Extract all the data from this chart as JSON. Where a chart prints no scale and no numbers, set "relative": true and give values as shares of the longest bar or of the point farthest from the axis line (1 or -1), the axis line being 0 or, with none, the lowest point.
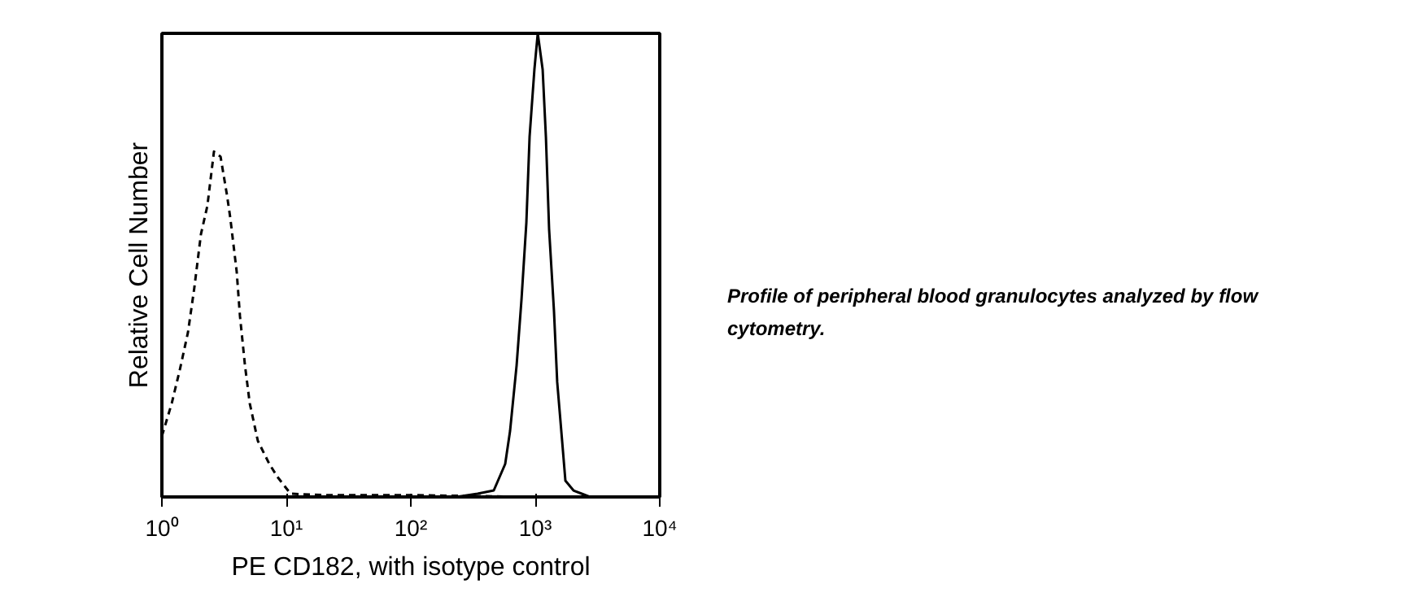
{
  "chart_data": {
    "type": "line",
    "relative": true,
    "xlabel": "PE CD182, with isotype control",
    "ylabel": "Relative Cell Number",
    "log": "x",
    "xlim": [
      1,
      10000
    ],
    "xticks": [
      {
        "value": 1,
        "label": "10⁰"
      },
      {
        "value": 10,
        "label": "10¹"
      },
      {
        "value": 100,
        "label": "10²"
      },
      {
        "value": 1000,
        "label": "10³"
      },
      {
        "value": 10000,
        "label": "10⁴"
      }
    ],
    "grid": false,
    "annotations": [
      "Profile of peripheral blood granulocytes analyzed by flow cytometry."
    ],
    "series": [
      {
        "color": "#000000",
        "line_style": "dashed",
        "x": [
          1,
          1.2,
          1.39,
          1.62,
          1.82,
          2.06,
          2.32,
          2.62,
          2.96,
          3.33,
          3.54,
          3.99,
          4.24,
          4.65,
          5.08,
          5.9,
          7.3,
          8.5,
          10.8,
          21,
          100,
          1000,
          3000
        ],
        "values": [
          0.131,
          0.202,
          0.273,
          0.355,
          0.45,
          0.567,
          0.628,
          0.745,
          0.734,
          0.652,
          0.603,
          0.486,
          0.39,
          0.284,
          0.202,
          0.121,
          0.071,
          0.043,
          0.007,
          0.004,
          0.004,
          0.0,
          0.0
        ]
      },
      {
        "color": "#000000",
        "line_style": "solid",
        "x": [
          7.3,
          232,
          344,
          464,
          573,
          627,
          708,
          775,
          848,
          900,
          984,
          1047,
          1146,
          1217,
          1291,
          1413,
          1500,
          1643,
          1746,
          2028,
          2360,
          2750
        ],
        "values": [
          0.0,
          0.0,
          0.007,
          0.014,
          0.071,
          0.142,
          0.284,
          0.426,
          0.592,
          0.777,
          0.922,
          1.0,
          0.922,
          0.777,
          0.578,
          0.401,
          0.248,
          0.121,
          0.035,
          0.014,
          0.007,
          0.0
        ]
      }
    ]
  }
}
